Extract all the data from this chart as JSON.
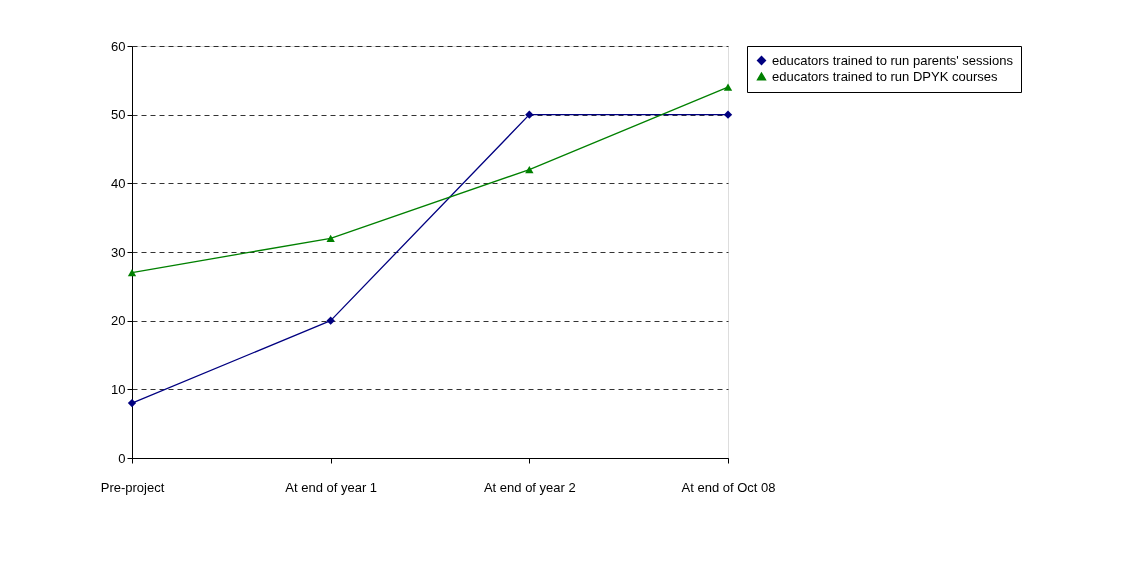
{
  "chart_data": {
    "type": "line",
    "categories": [
      "Pre-project",
      "At end of year 1",
      "At end of year 2",
      "At end of Oct 08"
    ],
    "series": [
      {
        "name": "educators trained to run parents' sessions",
        "color": "#000080",
        "marker": "diamond",
        "values": [
          8,
          20,
          50,
          50
        ]
      },
      {
        "name": "educators trained to run DPYK courses",
        "color": "#008000",
        "marker": "triangle",
        "values": [
          27,
          32,
          42,
          54
        ]
      }
    ],
    "ylim": [
      0,
      60
    ],
    "yticks": [
      0,
      10,
      20,
      30,
      40,
      50,
      60
    ],
    "grid": "y",
    "line_style": "solid",
    "legend": "right"
  }
}
